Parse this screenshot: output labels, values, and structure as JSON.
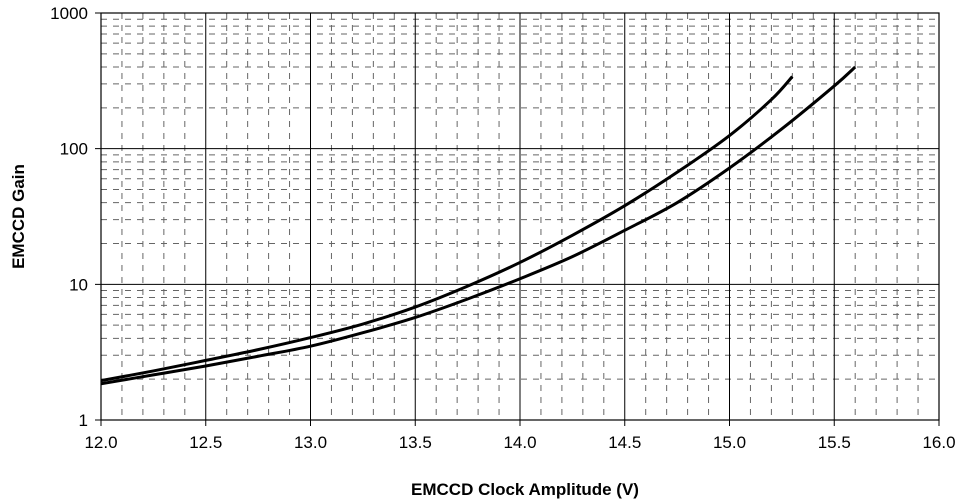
{
  "chart_data": {
    "type": "line",
    "title": "",
    "xlabel": "EMCCD Clock Amplitude (V)",
    "ylabel": "EMCCD Gain",
    "xlim": [
      12.0,
      16.0
    ],
    "ylim": [
      1,
      1000
    ],
    "yscale": "log",
    "grid": true,
    "minor_grid": "dashed",
    "x_ticks": [
      12.0,
      12.5,
      13.0,
      13.5,
      14.0,
      14.5,
      15.0,
      15.5,
      16.0
    ],
    "x_tick_labels": [
      "12.0",
      "12.5",
      "13.0",
      "13.5",
      "14.0",
      "14.5",
      "15.0",
      "15.5",
      "16.0"
    ],
    "y_ticks": [
      1,
      10,
      100,
      1000
    ],
    "y_tick_labels": [
      "1",
      "10",
      "100",
      "1000"
    ],
    "series": [
      {
        "color": "#000000",
        "x": [
          12.0,
          12.25,
          12.5,
          12.75,
          13.0,
          13.25,
          13.5,
          13.75,
          14.0,
          14.25,
          14.5,
          14.75,
          15.0,
          15.2,
          15.3
        ],
        "y": [
          1.95,
          2.3,
          2.75,
          3.3,
          4.05,
          5.1,
          6.8,
          9.7,
          14.5,
          23.0,
          38.0,
          67.0,
          125.0,
          230.0,
          340.0
        ]
      },
      {
        "color": "#000000",
        "x": [
          12.0,
          12.25,
          12.5,
          12.75,
          13.0,
          13.25,
          13.5,
          13.75,
          14.0,
          14.25,
          14.5,
          14.75,
          15.0,
          15.25,
          15.5,
          15.6
        ],
        "y": [
          1.85,
          2.15,
          2.5,
          2.95,
          3.5,
          4.4,
          5.7,
          7.8,
          11.0,
          16.0,
          25.0,
          40.0,
          72.0,
          140.0,
          290.0,
          400.0
        ]
      }
    ]
  }
}
